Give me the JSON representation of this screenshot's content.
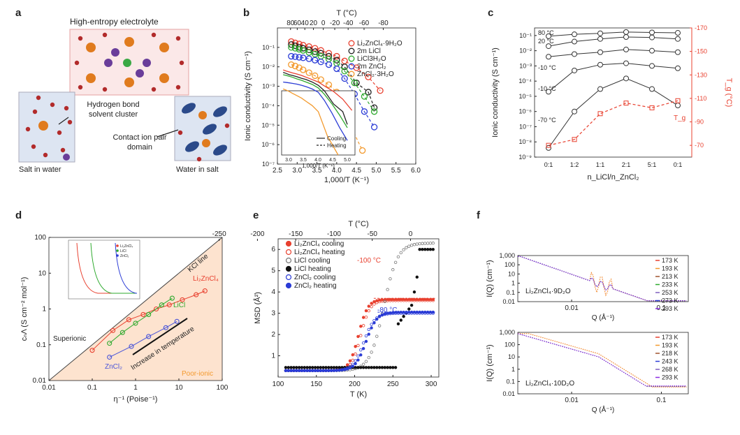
{
  "panels": {
    "a": {
      "label": "a",
      "title": "High-entropy electrolyte",
      "hbond_text": "Hydrogen bond solvent cluster",
      "contact_text": "Contact ion pair domain",
      "salt_in_water": "Salt in water",
      "water_in_salt": "Water in salt"
    },
    "b": {
      "label": "b"
    },
    "c": {
      "label": "c"
    },
    "d": {
      "label": "d"
    },
    "e": {
      "label": "e"
    },
    "f": {
      "label": "f"
    }
  },
  "chart_data": [
    {
      "id": "b",
      "type": "scatter",
      "xlabel": "1,000/T (K⁻¹)",
      "ylabel": "Ionic conductivity (S cm⁻¹)",
      "top_xlabel": "T (°C)",
      "xlim": [
        2.5,
        6.0
      ],
      "ylim_log10": [
        -7,
        0
      ],
      "xticks": [
        "2.5",
        "3.0",
        "3.5",
        "4.0",
        "4.5",
        "5.0",
        "5.5",
        "6.0"
      ],
      "top_ticks": [
        "80",
        "60",
        "40",
        "20",
        "0",
        "-20",
        "-40",
        "-60",
        "-80"
      ],
      "top_tick_temps_c": [
        80,
        60,
        40,
        20,
        0,
        -20,
        -40,
        -60,
        -80
      ],
      "yticks": [
        "10⁻¹",
        "10⁻²",
        "10⁻³",
        "10⁻⁴",
        "10⁻⁵",
        "10⁻⁶",
        "10⁻⁷"
      ],
      "series": [
        {
          "name": "Li₂ZnCl₄·9H₂O",
          "color": "#e8402f",
          "x": [
            2.85,
            2.95,
            3.05,
            3.15,
            3.3,
            3.45,
            3.6,
            3.8,
            4.0,
            4.2,
            4.5,
            4.8,
            5.1
          ],
          "y": [
            0.2,
            0.17,
            0.15,
            0.13,
            0.11,
            0.09,
            0.07,
            0.05,
            0.035,
            0.02,
            0.009,
            0.003,
            0.0006
          ]
        },
        {
          "name": "2m LiCl",
          "color": "#222222",
          "x": [
            2.85,
            2.95,
            3.05,
            3.15,
            3.3,
            3.45,
            3.6,
            3.8,
            4.0,
            4.2,
            4.5,
            4.8,
            4.95
          ],
          "y": [
            0.14,
            0.12,
            0.1,
            0.09,
            0.075,
            0.06,
            0.05,
            0.035,
            0.022,
            0.01,
            0.0015,
            0.0005,
            8e-05
          ]
        },
        {
          "name": "LiCl3H₂O",
          "color": "#2eaa2e",
          "x": [
            2.85,
            2.95,
            3.05,
            3.15,
            3.3,
            3.45,
            3.6,
            3.8,
            4.0,
            4.2,
            4.45,
            4.7,
            4.95
          ],
          "y": [
            0.1,
            0.09,
            0.08,
            0.07,
            0.055,
            0.045,
            0.035,
            0.025,
            0.015,
            0.006,
            0.0015,
            0.0003,
            5e-05
          ]
        },
        {
          "name": "2m ZnCl₂",
          "color": "#2b3cd6",
          "x": [
            2.85,
            2.95,
            3.05,
            3.15,
            3.3,
            3.45,
            3.6,
            3.8,
            4.0,
            4.2,
            4.45,
            4.7,
            4.95
          ],
          "y": [
            0.035,
            0.033,
            0.031,
            0.029,
            0.026,
            0.022,
            0.018,
            0.013,
            0.008,
            0.0025,
            0.0004,
            5e-05,
            8e-06
          ]
        },
        {
          "name": "ZnCl₂·3H₂O",
          "color": "#f39a2e",
          "x": [
            2.85,
            2.95,
            3.05,
            3.15,
            3.3,
            3.45,
            3.6,
            3.8,
            4.0,
            4.3,
            4.65
          ],
          "y": [
            0.013,
            0.011,
            0.009,
            0.007,
            0.005,
            0.0035,
            0.0022,
            0.0012,
            0.0005,
            1.5e-05,
            5e-07
          ]
        }
      ],
      "inset": {
        "xticks": [
          "3.0",
          "3.5",
          "4.0",
          "4.5",
          "5.0"
        ],
        "xlabel": "1,000/T (K⁻¹)",
        "legend": [
          "Cooling",
          "Heating"
        ]
      }
    },
    {
      "id": "c",
      "type": "line",
      "xlabel": "n_LiCl/n_ZnCl₂",
      "ylabel": "Ionic conductivity (S cm⁻¹)",
      "ylabel_right": "T_g (°C)",
      "categories": [
        "0:1",
        "1:2",
        "1:1",
        "2:1",
        "5:1",
        "0:1"
      ],
      "ylim_log10": [
        -9,
        -0.5
      ],
      "yticks": [
        "10⁻¹",
        "10⁻²",
        "10⁻³",
        "10⁻⁴",
        "10⁻⁵",
        "10⁻⁶",
        "10⁻⁷",
        "10⁻⁸",
        "10⁻⁹"
      ],
      "right_ylim": [
        -170,
        -60
      ],
      "right_yticks": [
        "-170",
        "-150",
        "-130",
        "-110",
        "-90",
        "-70"
      ],
      "series": [
        {
          "name": "80 °C",
          "values": [
            0.09,
            0.12,
            0.14,
            0.17,
            0.16,
            0.15
          ]
        },
        {
          "name": "20 °C",
          "values": [
            0.02,
            0.04,
            0.06,
            0.08,
            0.075,
            0.06
          ]
        },
        {
          "name": "-10 °C",
          "values": [
            0.004,
            0.006,
            0.008,
            0.012,
            0.01,
            0.008
          ]
        },
        {
          "name": "-10 °C",
          "values": [
            2e-05,
            0.0005,
            0.0012,
            0.0015,
            0.001,
            0.0007
          ]
        },
        {
          "name": "-70 °C",
          "values": [
            4e-09,
            1e-06,
            3e-05,
            0.00015,
            3e-05,
            2.5e-06
          ]
        }
      ],
      "tg_series": {
        "name": "T_g",
        "values": [
          -70,
          -75,
          -97,
          -106,
          -102,
          -108
        ]
      }
    },
    {
      "id": "d",
      "type": "line",
      "xlabel": "η⁻¹ (Poise⁻¹)",
      "ylabel": "cₙΛ (S cm⁻² mol⁻¹)",
      "xlim_log10": [
        -2,
        2
      ],
      "ylim_log10": [
        -2,
        2
      ],
      "xticks": [
        "0.01",
        "0.1",
        "1",
        "10",
        "100"
      ],
      "yticks": [
        "100",
        "10",
        "1",
        "0.1",
        "0.01"
      ],
      "annotations": [
        "KCl line",
        "Superionic",
        "Poor-ionic",
        "Increase in temperature"
      ],
      "series": [
        {
          "name": "Li₂ZnCl₄",
          "color": "#e8402f",
          "x": [
            0.1,
            0.3,
            0.7,
            1.5,
            3,
            6,
            12,
            25,
            40
          ],
          "y": [
            0.07,
            0.25,
            0.5,
            0.7,
            1.0,
            1.3,
            1.8,
            2.5,
            3.2
          ]
        },
        {
          "name": "LiCl",
          "color": "#2eaa2e",
          "x": [
            0.25,
            0.5,
            1.0,
            2,
            4,
            7
          ],
          "y": [
            0.11,
            0.22,
            0.4,
            0.7,
            1.3,
            2.0
          ]
        },
        {
          "name": "ZnCl₂",
          "color": "#4a55d8",
          "x": [
            0.25,
            0.8,
            2,
            5,
            9
          ],
          "y": [
            0.045,
            0.09,
            0.17,
            0.3,
            0.45
          ]
        }
      ],
      "inset_legend": [
        "Li₂ZnCl₄",
        "LiCl",
        "ZnCl₂"
      ]
    },
    {
      "id": "e",
      "type": "scatter",
      "xlabel": "T (K)",
      "ylabel": "MSD (Å²)",
      "top_xlabel": "T (°C)",
      "xlim": [
        100,
        310
      ],
      "ylim": [
        0,
        6.5
      ],
      "xticks": [
        "100",
        "150",
        "200",
        "250",
        "300"
      ],
      "yticks": [
        "1",
        "2",
        "3",
        "4",
        "5",
        "6"
      ],
      "top_ticks": [
        "-250",
        "-200",
        "-150",
        "-100",
        "-50",
        "0"
      ],
      "top_tick_temps_c": [
        -250,
        -200,
        -150,
        -100,
        -50,
        0
      ],
      "annotations": [
        "-100 °C",
        "-80 °C"
      ],
      "series": [
        {
          "name": "Li₂ZnCl₄ cooling",
          "color": "#e8402f",
          "filled": true
        },
        {
          "name": "Li₂ZnCl₄ heating",
          "color": "#e8402f",
          "filled": false
        },
        {
          "name": "LiCl cooling",
          "color": "#777777",
          "filled": false
        },
        {
          "name": "LiCl heating",
          "color": "#111111",
          "filled": true
        },
        {
          "name": "ZnCl₂ cooling",
          "color": "#2b3cd6",
          "filled": false
        },
        {
          "name": "ZnCl₂ heating",
          "color": "#2b3cd6",
          "filled": true
        }
      ]
    },
    {
      "id": "f_top",
      "type": "line",
      "xlabel": "Q (Å⁻¹)",
      "ylabel": "I(Q) (cm⁻¹)",
      "sample": "Li₂ZnCl₄·9D₂O",
      "xlim_log10": [
        -2.6,
        -0.7
      ],
      "ylim_log10": [
        -2,
        3
      ],
      "xticks": [
        "0.01",
        "0.1"
      ],
      "yticks": [
        "1,000",
        "100",
        "10",
        "1",
        "0.1",
        "0.01"
      ],
      "legend": [
        "173 K",
        "193 K",
        "213 K",
        "233 K",
        "253 K",
        "273 K",
        "293 K"
      ],
      "colors": [
        "#e8402f",
        "#f39a2e",
        "#a0522d",
        "#2eaa2e",
        "#7f5fbf",
        "#2b3cd6",
        "#8a2be2"
      ]
    },
    {
      "id": "f_bottom",
      "type": "line",
      "xlabel": "Q (Å⁻¹)",
      "ylabel": "I(Q) (cm⁻¹)",
      "sample": "Li₂ZnCl₄·10D₂O",
      "xlim_log10": [
        -2.6,
        -0.7
      ],
      "ylim_log10": [
        -2,
        3
      ],
      "xticks": [
        "0.01",
        "0.1"
      ],
      "yticks": [
        "1,000",
        "100",
        "10",
        "1",
        "0.1",
        "0.01"
      ],
      "legend": [
        "173 K",
        "193 K",
        "218 K",
        "243 K",
        "268 K",
        "293 K"
      ],
      "colors": [
        "#e8402f",
        "#f39a2e",
        "#a0522d",
        "#2b3cd6",
        "#7f5fbf",
        "#8a2be2"
      ]
    }
  ]
}
